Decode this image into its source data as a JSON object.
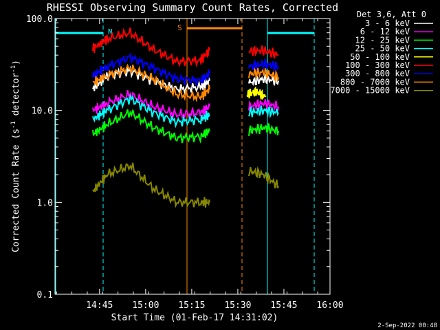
{
  "chart_data": {
    "type": "line",
    "title": "RHESSI Observing Summary Count Rates, Corrected",
    "xlabel": "Start Time (01-Feb-17 14:31:02)",
    "ylabel_main": "Corrected Count Rate (s",
    "ylabel_sup1": "-1",
    "ylabel_mid": " detector",
    "ylabel_sup2": "-1",
    "ylabel_end": ")",
    "yscale": "log",
    "ylim": [
      0.1,
      100.0
    ],
    "xlim_minutes_after_start": [
      -0.5,
      64.5
    ],
    "x_ticks": [
      {
        "label": "14:45",
        "minute": 14.0
      },
      {
        "label": "15:00",
        "minute": 29.0
      },
      {
        "label": "15:15",
        "minute": 44.0
      },
      {
        "label": "15:30",
        "minute": 59.0
      },
      {
        "label": "15:45",
        "minute": 74.0
      },
      {
        "label": "16:00",
        "minute": 89.0
      }
    ],
    "y_ticks": [
      {
        "label": "100.0",
        "value": 100
      },
      {
        "label": "10.0",
        "value": 10
      },
      {
        "label": "1.0",
        "value": 1
      },
      {
        "label": "0.1",
        "value": 0.1
      }
    ],
    "legend_title": "Det 3,6, Att 0",
    "legend_placement": "right",
    "series": [
      {
        "name": "3 - 6 keV",
        "color": "#ffffff",
        "segments": [
          [
            [
              14,
              17
            ],
            [
              20,
              24
            ],
            [
              30,
              27
            ],
            [
              40,
              21
            ],
            [
              50,
              17
            ],
            [
              60,
              18
            ],
            [
              64,
              21
            ]
          ],
          [
            [
              80,
              20
            ],
            [
              84,
              22
            ],
            [
              88,
              21
            ]
          ]
        ]
      },
      {
        "name": "6 - 12 keV",
        "color": "#ff00ff",
        "segments": [
          [
            [
              14,
              10
            ],
            [
              20,
              12
            ],
            [
              30,
              15
            ],
            [
              40,
              11
            ],
            [
              50,
              9
            ],
            [
              60,
              9.5
            ],
            [
              64,
              11
            ]
          ],
          [
            [
              80,
              11
            ],
            [
              84,
              12
            ],
            [
              88,
              11
            ]
          ]
        ]
      },
      {
        "name": "12 - 25 keV",
        "color": "#00ff00",
        "segments": [
          [
            [
              14,
              5.5
            ],
            [
              20,
              7
            ],
            [
              30,
              9.5
            ],
            [
              40,
              6.5
            ],
            [
              50,
              5
            ],
            [
              60,
              5.2
            ],
            [
              64,
              6
            ]
          ],
          [
            [
              80,
              6
            ],
            [
              84,
              6.5
            ],
            [
              88,
              6
            ]
          ]
        ]
      },
      {
        "name": "25 - 50 keV",
        "color": "#00ffff",
        "segments": [
          [
            [
              14,
              8
            ],
            [
              20,
              10
            ],
            [
              30,
              13.5
            ],
            [
              40,
              9.5
            ],
            [
              50,
              7.5
            ],
            [
              60,
              8
            ],
            [
              64,
              9
            ]
          ],
          [
            [
              80,
              9.5
            ],
            [
              84,
              10
            ],
            [
              88,
              9.5
            ]
          ]
        ]
      },
      {
        "name": "50 - 100 keV",
        "color": "#ffff00",
        "segments": [
          [
            [
              80,
              15
            ],
            [
              84,
              16
            ],
            [
              88,
              14
            ]
          ]
        ]
      },
      {
        "name": "100 - 300 keV",
        "color": "#ff0000",
        "segments": [
          [
            [
              14,
              47
            ],
            [
              20,
              60
            ],
            [
              30,
              70
            ],
            [
              40,
              46
            ],
            [
              50,
              34
            ],
            [
              60,
              35
            ],
            [
              64,
              45
            ]
          ],
          [
            [
              80,
              44
            ],
            [
              84,
              45
            ],
            [
              88,
              40
            ]
          ]
        ]
      },
      {
        "name": "300 - 800 keV",
        "color": "#0000ff",
        "segments": [
          [
            [
              14,
              24
            ],
            [
              20,
              30
            ],
            [
              30,
              38
            ],
            [
              40,
              29
            ],
            [
              50,
              22
            ],
            [
              60,
              21
            ],
            [
              64,
              25
            ]
          ],
          [
            [
              80,
              30
            ],
            [
              84,
              32
            ],
            [
              88,
              30
            ]
          ]
        ]
      },
      {
        "name": "800 - 7000 keV",
        "color": "#ff8800",
        "segments": [
          [
            [
              14,
              20
            ],
            [
              20,
              24
            ],
            [
              30,
              29
            ],
            [
              40,
              22
            ],
            [
              50,
              15
            ],
            [
              60,
              14
            ],
            [
              64,
              17
            ]
          ],
          [
            [
              80,
              25
            ],
            [
              84,
              26
            ],
            [
              88,
              23
            ]
          ]
        ]
      },
      {
        "name": "7000 - 15000 keV",
        "color": "#888800",
        "segments": [
          [
            [
              14,
              1.3
            ],
            [
              20,
              2
            ],
            [
              30,
              2.5
            ],
            [
              40,
              1.4
            ],
            [
              50,
              1.0
            ],
            [
              60,
              1.0
            ],
            [
              64,
              1.0
            ]
          ],
          [
            [
              80,
              2.2
            ],
            [
              84,
              2.0
            ],
            [
              88,
              1.5
            ]
          ]
        ]
      }
    ],
    "annotations": [
      {
        "text": "N",
        "color": "#00ffff"
      },
      {
        "text": "S",
        "color": "#ff8800"
      }
    ],
    "footer": "2-Sep-2022 00:48"
  }
}
